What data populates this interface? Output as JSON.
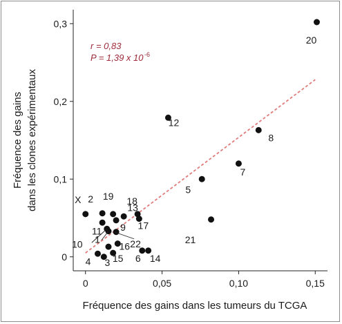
{
  "chart_data": {
    "type": "scatter",
    "xlabel": "Fréquence des gains dans les tumeurs du TCGA",
    "ylabel_line1": "Fréquence des gains",
    "ylabel_line2": "dans les clones expérimentaux",
    "xlim": [
      -0.008,
      0.158
    ],
    "ylim": [
      -0.018,
      0.318
    ],
    "x_ticks": [
      0,
      0.05,
      0.1,
      0.15
    ],
    "x_tick_labels": [
      "0",
      "0,05",
      "0,10",
      "0,15"
    ],
    "y_ticks": [
      0,
      0.1,
      0.2,
      0.3
    ],
    "y_tick_labels": [
      "0",
      "0,1",
      "0,2",
      "0,3"
    ],
    "annotation": {
      "r_label": "r = 0,83",
      "p_label": "P = 1,39 x 10",
      "p_exponent": "-6"
    },
    "regression": {
      "x": [
        0,
        0.15
      ],
      "y": [
        0.005,
        0.228
      ],
      "color": "#e07b7b",
      "style": "dashed"
    },
    "points": [
      {
        "label": "20",
        "x": 0.151,
        "y": 0.302
      },
      {
        "label": "12",
        "x": 0.054,
        "y": 0.179
      },
      {
        "label": "8",
        "x": 0.113,
        "y": 0.163
      },
      {
        "label": "7",
        "x": 0.1,
        "y": 0.12
      },
      {
        "label": "5",
        "x": 0.076,
        "y": 0.1
      },
      {
        "label": "21",
        "x": 0.082,
        "y": 0.048
      },
      {
        "label": "X",
        "x": 0.0,
        "y": 0.055
      },
      {
        "label": "2",
        "x": 0.011,
        "y": 0.056
      },
      {
        "label": "19",
        "x": 0.018,
        "y": 0.055
      },
      {
        "label": "13",
        "x": 0.025,
        "y": 0.052
      },
      {
        "label": "18",
        "x": 0.034,
        "y": 0.055
      },
      {
        "label": "17",
        "x": 0.035,
        "y": 0.049
      },
      {
        "label": "11",
        "x": 0.011,
        "y": 0.044
      },
      {
        "label": "9",
        "x": 0.02,
        "y": 0.047
      },
      {
        "label": "22",
        "x": 0.02,
        "y": 0.032
      },
      {
        "label": "10",
        "x": 0.014,
        "y": 0.036
      },
      {
        "label": "1",
        "x": 0.015,
        "y": 0.033
      },
      {
        "label": "16",
        "x": 0.021,
        "y": 0.017
      },
      {
        "label": "",
        "x": 0.015,
        "y": 0.013
      },
      {
        "label": "4",
        "x": 0.008,
        "y": 0.004
      },
      {
        "label": "3",
        "x": 0.012,
        "y": 0.0
      },
      {
        "label": "15",
        "x": 0.018,
        "y": 0.005
      },
      {
        "label": "6",
        "x": 0.037,
        "y": 0.008
      },
      {
        "label": "14",
        "x": 0.041,
        "y": 0.008
      }
    ],
    "point_color": "#111111",
    "grid": false
  }
}
